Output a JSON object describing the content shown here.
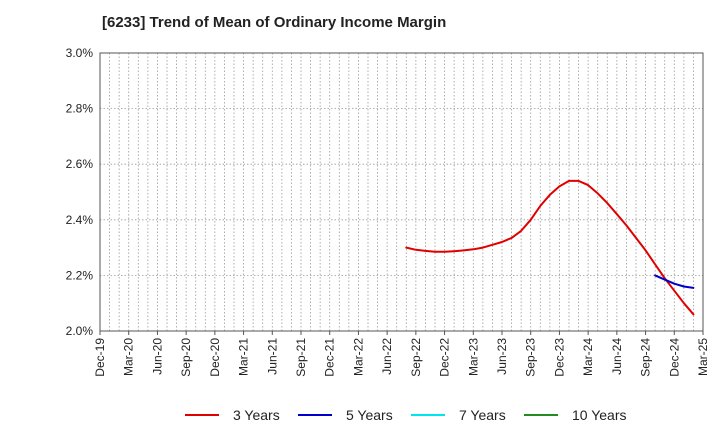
{
  "chart_data": {
    "type": "line",
    "title": "[6233]  Trend of Mean of Ordinary Income Margin",
    "x": [
      "Dec-19",
      "Mar-20",
      "Jun-20",
      "Sep-20",
      "Dec-20",
      "Mar-21",
      "Jun-21",
      "Sep-21",
      "Dec-21",
      "Mar-22",
      "Jun-22",
      "Sep-22",
      "Dec-22",
      "Mar-23",
      "Jun-23",
      "Sep-23",
      "Dec-23",
      "Mar-24",
      "Jun-24",
      "Sep-24",
      "Dec-24",
      "Mar-25"
    ],
    "yticks": [
      "2.0%",
      "2.2%",
      "2.4%",
      "2.6%",
      "2.8%",
      "3.0%"
    ],
    "ylim": [
      2.0,
      3.0
    ],
    "grid": true,
    "legend_position": "bottom",
    "series": [
      {
        "name": "3 Years",
        "color": "#e00000",
        "points": [
          [
            "Aug-22",
            2.3
          ],
          [
            "Sep-22",
            2.292
          ],
          [
            "Oct-22",
            2.288
          ],
          [
            "Nov-22",
            2.285
          ],
          [
            "Dec-22",
            2.285
          ],
          [
            "Jan-23",
            2.287
          ],
          [
            "Feb-23",
            2.29
          ],
          [
            "Mar-23",
            2.294
          ],
          [
            "Apr-23",
            2.3
          ],
          [
            "May-23",
            2.31
          ],
          [
            "Jun-23",
            2.32
          ],
          [
            "Jul-23",
            2.335
          ],
          [
            "Aug-23",
            2.36
          ],
          [
            "Sep-23",
            2.4
          ],
          [
            "Oct-23",
            2.45
          ],
          [
            "Nov-23",
            2.49
          ],
          [
            "Dec-23",
            2.52
          ],
          [
            "Jan-24",
            2.54
          ],
          [
            "Feb-24",
            2.54
          ],
          [
            "Mar-24",
            2.525
          ],
          [
            "Apr-24",
            2.495
          ],
          [
            "May-24",
            2.46
          ],
          [
            "Jun-24",
            2.42
          ],
          [
            "Jul-24",
            2.38
          ],
          [
            "Aug-24",
            2.335
          ],
          [
            "Sep-24",
            2.29
          ],
          [
            "Oct-24",
            2.24
          ],
          [
            "Nov-24",
            2.19
          ],
          [
            "Dec-24",
            2.145
          ],
          [
            "Jan-25",
            2.1
          ],
          [
            "Feb-25",
            2.06
          ]
        ]
      },
      {
        "name": "5 Years",
        "color": "#0000cc",
        "points": [
          [
            "Oct-24",
            2.2
          ],
          [
            "Nov-24",
            2.185
          ],
          [
            "Dec-24",
            2.17
          ],
          [
            "Jan-25",
            2.16
          ],
          [
            "Feb-25",
            2.155
          ]
        ]
      },
      {
        "name": "7 Years",
        "color": "#00e5ee",
        "points": []
      },
      {
        "name": "10 Years",
        "color": "#228b22",
        "points": []
      }
    ]
  }
}
